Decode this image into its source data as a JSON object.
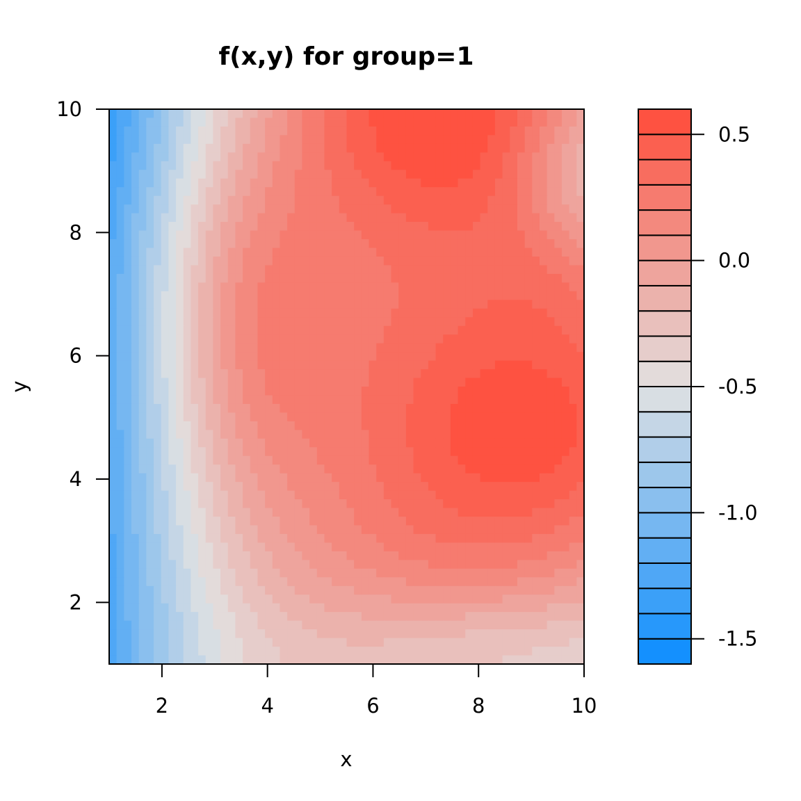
{
  "chart_data": {
    "type": "heatmap",
    "title": "f(x,y) for group=1",
    "xlabel": "x",
    "ylabel": "y",
    "xlim": [
      1,
      10
    ],
    "ylim": [
      1,
      10
    ],
    "x_ticks": [
      2,
      4,
      6,
      8,
      10
    ],
    "y_ticks": [
      2,
      4,
      6,
      8,
      10
    ],
    "x_tick_labels": [
      "2",
      "4",
      "6",
      "8",
      "10"
    ],
    "y_tick_labels": [
      "2",
      "4",
      "6",
      "8",
      "10"
    ],
    "colorbar": {
      "range": [
        -1.6,
        0.6
      ],
      "levels": [
        -1.6,
        -1.5,
        -1.4,
        -1.3,
        -1.2,
        -1.1,
        -1.0,
        -0.9,
        -0.8,
        -0.7,
        -0.6,
        -0.5,
        -0.4,
        -0.3,
        -0.2,
        -0.1,
        0.0,
        0.1,
        0.2,
        0.3,
        0.4,
        0.5,
        0.6
      ],
      "ticks": [
        0.5,
        0.0,
        -0.5,
        -1.0,
        -1.5
      ],
      "tick_labels": [
        "0.5",
        "0.0",
        "-0.5",
        "-1.0",
        "-1.5"
      ],
      "low_color": "#0a8cff",
      "mid_color": "#e2e2e2",
      "high_color": "#ff4b39"
    },
    "grid": false,
    "legend": "right"
  }
}
